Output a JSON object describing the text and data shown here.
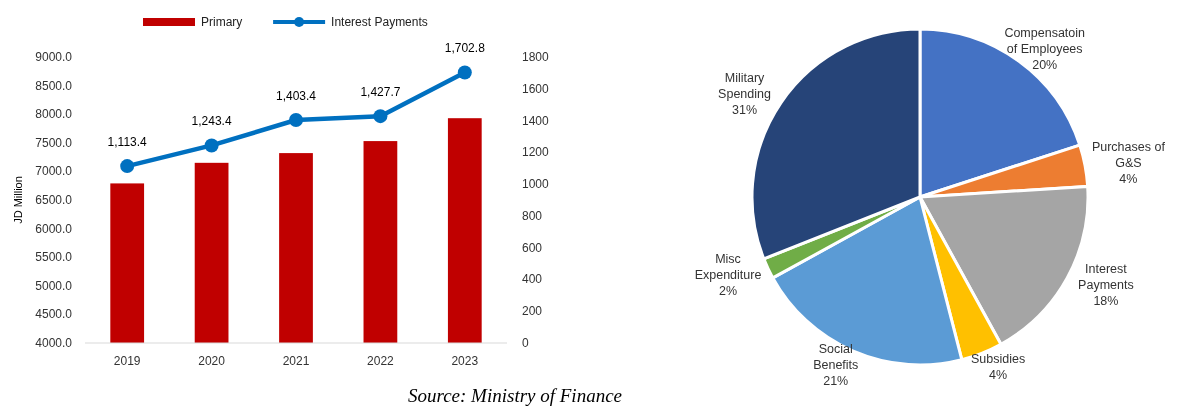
{
  "chart_data": [
    {
      "type": "bar",
      "categories": [
        "2019",
        "2020",
        "2021",
        "2022",
        "2023"
      ],
      "ylabel": "JD Million",
      "ylim": [
        4000,
        9000
      ],
      "yticks": [
        {
          "value": 4000,
          "label": "4000.0"
        },
        {
          "value": 4500,
          "label": "4500.0"
        },
        {
          "value": 5000,
          "label": "5000.0"
        },
        {
          "value": 5500,
          "label": "5500.0"
        },
        {
          "value": 6000,
          "label": "6000.0"
        },
        {
          "value": 6500,
          "label": "6500.0"
        },
        {
          "value": 7000,
          "label": "7000.0"
        },
        {
          "value": 7500,
          "label": "7500.0"
        },
        {
          "value": 8000,
          "label": "8000.0"
        },
        {
          "value": 8500,
          "label": "8500.0"
        },
        {
          "value": 9000,
          "label": "9000.0"
        }
      ],
      "y2lim": [
        0,
        1800
      ],
      "y2ticks": [
        0,
        200,
        400,
        600,
        800,
        1000,
        1200,
        1400,
        1600,
        1800
      ],
      "series": [
        {
          "name": "Primary",
          "color": "#c00000",
          "values": [
            6790,
            7150,
            7320,
            7530,
            7930
          ]
        },
        {
          "name": "Interest Payments",
          "type": "line",
          "axis": "y2",
          "color": "#0070c0",
          "values": [
            1113.4,
            1243.4,
            1403.4,
            1427.7,
            1702.8
          ],
          "value_labels": [
            "1,113.4",
            "1,243.4",
            "1,403.4",
            "1,427.7",
            "1,702.8"
          ]
        }
      ],
      "marker": "circle",
      "legend": "top",
      "grid": false,
      "annotations": [
        "Source: Ministry of Finance"
      ]
    },
    {
      "type": "pie",
      "categories": [
        "Compensatoin of Employees",
        "Purchases of G&S",
        "Interest Payments",
        "Subsidies",
        "Social Benefits",
        "Misc Expenditure",
        "Military Spending"
      ],
      "values": [
        20,
        4,
        18,
        4,
        21,
        2,
        31
      ],
      "colors": [
        "#4472c4",
        "#ed7d31",
        "#a5a5a5",
        "#ffc000",
        "#5b9bd5",
        "#70ad47",
        "#264478"
      ],
      "value_labels": [
        "20%",
        "4%",
        "18%",
        "4%",
        "21%",
        "2%",
        "31%"
      ]
    }
  ]
}
